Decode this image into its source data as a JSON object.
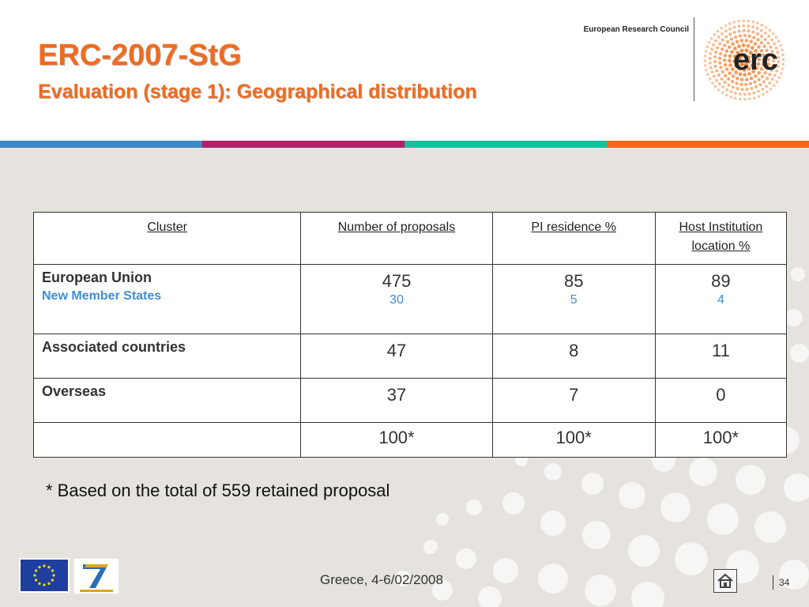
{
  "header": {
    "title": "ERC-2007-StG",
    "subtitle": "Evaluation (stage 1): Geographical distribution",
    "council_label": "European Research Council",
    "logo_text": "erc"
  },
  "colors": {
    "accent_orange": "#ee6c21",
    "bar_blue": "#3c87c8",
    "bar_magenta": "#b12368",
    "bar_teal": "#18c0a0",
    "bar_orange": "#f06b1c",
    "sub_blue": "#3b8fd6"
  },
  "table": {
    "headers": [
      "Cluster",
      "Number of proposals",
      "PI residence %",
      "Host Institution location %"
    ],
    "rows": [
      {
        "cluster": "European Union",
        "cluster_sub": "New Member States",
        "proposals": "475",
        "proposals_sub": "30",
        "pi": "85",
        "pi_sub": "5",
        "host": "89",
        "host_sub": "4"
      },
      {
        "cluster": "Associated countries",
        "proposals": "47",
        "pi": "8",
        "host": "11"
      },
      {
        "cluster": "Overseas",
        "proposals": "37",
        "pi": "7",
        "host": "0"
      },
      {
        "cluster": "",
        "proposals": "100*",
        "pi": "100*",
        "host": "100*"
      }
    ]
  },
  "footnote": "* Based on the total of 559 retained proposal",
  "footer": {
    "location_date": "Greece, 4-6/02/2008",
    "page_number": "34",
    "home_icon": "home-icon",
    "eu_flag_icon": "eu-flag-icon",
    "fp7_icon": "fp7-ideas-icon"
  }
}
